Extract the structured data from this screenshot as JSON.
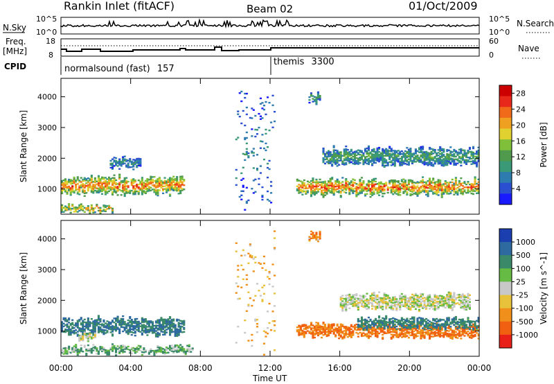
{
  "header": {
    "station": "Rankin Inlet (fitACF)",
    "beam": "Beam 02",
    "date": "01/Oct/2009"
  },
  "noise_panel": {
    "left_label": "N.Sky",
    "left_ticks": [
      "10^5",
      "10^0"
    ],
    "right_label": "N.Search",
    "right_ticks": [
      "10^5",
      "10^0"
    ],
    "right_line_style": "dotted"
  },
  "freq_panel": {
    "left_label": "Freq.",
    "left_unit": "[MHz]",
    "left_ticks": [
      "18",
      "8"
    ],
    "right_label": "Nave",
    "right_ticks": [
      "60",
      "0"
    ],
    "right_line_style": "dotted"
  },
  "cpid_panel": {
    "label": "CPID",
    "modes": [
      {
        "name": "normalsound (fast)",
        "cpid": "157",
        "start_hour": 0,
        "end_hour": 12.0
      },
      {
        "name": "themis",
        "cpid": "3300",
        "start_hour": 12.0,
        "end_hour": 24
      }
    ]
  },
  "chart_data": [
    {
      "type": "heatmap",
      "title": "Power",
      "ylabel": "Slant Range [km]",
      "xlabel": "Time UT",
      "xlim_hours": [
        0,
        24
      ],
      "ylim_km": [
        180,
        4600
      ],
      "x_ticks": [
        "00:00",
        "04:00",
        "08:00",
        "12:00",
        "16:00",
        "20:00",
        "00:00"
      ],
      "y_ticks": [
        1000,
        2000,
        3000,
        4000
      ],
      "colorbar": {
        "label": "Power [dB]",
        "ticks": [
          4,
          8,
          12,
          16,
          20,
          24,
          28
        ],
        "range": [
          0,
          30
        ],
        "colors": [
          "#1a1aff",
          "#2a4fd0",
          "#2e7bb0",
          "#3a9a78",
          "#4f9a4c",
          "#7fbf3a",
          "#e0d030",
          "#f0a020",
          "#f06a1a",
          "#e8281a",
          "#cc0000"
        ]
      },
      "bands": [
        {
          "t_start": 0.0,
          "t_end": 7.0,
          "r_center": 1100,
          "r_width": 500,
          "level": 22
        },
        {
          "t_start": 0.0,
          "t_end": 3.0,
          "r_center": 350,
          "r_width": 200,
          "level": 20
        },
        {
          "t_start": 2.8,
          "t_end": 4.5,
          "r_center": 1850,
          "r_width": 300,
          "level": 8
        },
        {
          "t_start": 13.5,
          "t_end": 24.0,
          "r_center": 1050,
          "r_width": 450,
          "level": 22
        },
        {
          "t_start": 15.0,
          "t_end": 24.0,
          "r_center": 2050,
          "r_width": 500,
          "level": 10
        },
        {
          "t_start": 14.2,
          "t_end": 14.8,
          "r_center": 3950,
          "r_width": 250,
          "level": 11
        },
        {
          "t_start": 10.0,
          "t_end": 12.2,
          "r_center": 2200,
          "r_width": 3500,
          "level": 6
        }
      ]
    },
    {
      "type": "heatmap",
      "title": "Velocity",
      "ylabel": "Slant Range [km]",
      "xlabel": "Time UT",
      "xlim_hours": [
        0,
        24
      ],
      "ylim_km": [
        180,
        4600
      ],
      "x_ticks": [
        "00:00",
        "04:00",
        "08:00",
        "12:00",
        "16:00",
        "20:00",
        "00:00"
      ],
      "y_ticks": [
        1000,
        2000,
        3000,
        4000
      ],
      "colorbar": {
        "label": "Velocity [m s^-1]",
        "ticks": [
          "1000",
          "500",
          "100",
          "25",
          "-25",
          "-100",
          "-500",
          "-1000"
        ],
        "colors": [
          "#1c3fb0",
          "#2e6aa0",
          "#3a8a6a",
          "#66bb44",
          "#c8c8c8",
          "#e8c23a",
          "#f0901a",
          "#f06010",
          "#e82018"
        ]
      },
      "bands": [
        {
          "t_start": 0.0,
          "t_end": 7.0,
          "r_center": 1150,
          "r_width": 500,
          "value": 300
        },
        {
          "t_start": 1.0,
          "t_end": 2.0,
          "r_center": 800,
          "r_width": 200,
          "value": 0
        },
        {
          "t_start": 0.0,
          "t_end": 7.5,
          "r_center": 380,
          "r_width": 200,
          "value": 60
        },
        {
          "t_start": 13.5,
          "t_end": 24.0,
          "r_center": 1000,
          "r_width": 400,
          "value": -300
        },
        {
          "t_start": 17.0,
          "t_end": 24.0,
          "r_center": 1250,
          "r_width": 300,
          "value": 250
        },
        {
          "t_start": 16.0,
          "t_end": 23.5,
          "r_center": 1950,
          "r_width": 450,
          "value": 0
        },
        {
          "t_start": 14.2,
          "t_end": 14.8,
          "r_center": 4050,
          "r_width": 200,
          "value": -200
        },
        {
          "t_start": 10.0,
          "t_end": 12.2,
          "r_center": 2200,
          "r_width": 3500,
          "value": -60
        }
      ]
    }
  ]
}
